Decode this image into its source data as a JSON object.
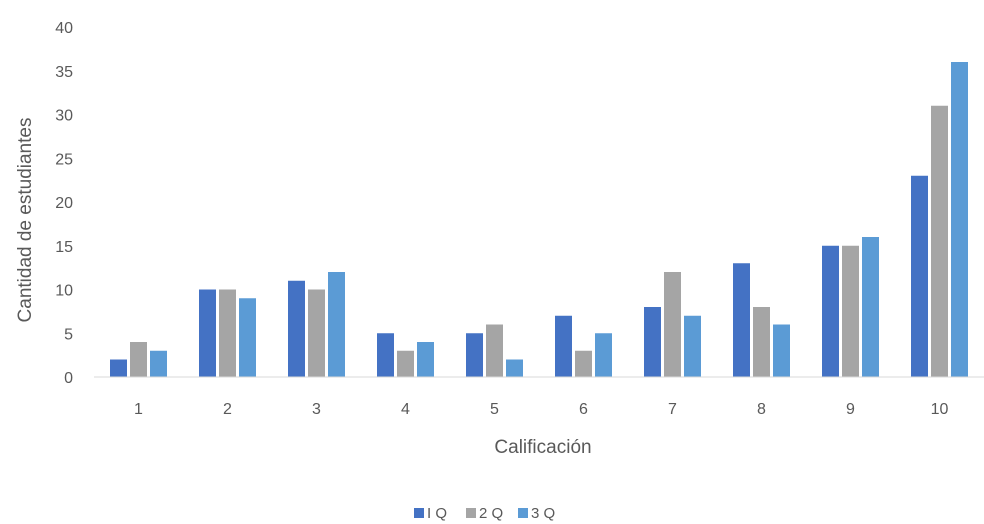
{
  "chart_data": {
    "type": "bar",
    "title": "",
    "xlabel": "Calificación",
    "ylabel": "Cantidad de estudiantes",
    "categories": [
      "1",
      "2",
      "3",
      "4",
      "5",
      "6",
      "7",
      "8",
      "9",
      "10"
    ],
    "yticks": [
      "0",
      "5",
      "10",
      "15",
      "20",
      "25",
      "30",
      "35",
      "40"
    ],
    "ylim": [
      0,
      40
    ],
    "grid": false,
    "legend_position": "bottom",
    "series": [
      {
        "name": "I Q",
        "color": "#4472C4",
        "values": [
          2,
          10,
          11,
          5,
          5,
          7,
          8,
          13,
          15,
          23
        ]
      },
      {
        "name": "2 Q",
        "color": "#A5A5A5",
        "values": [
          4,
          10,
          10,
          3,
          6,
          3,
          12,
          8,
          15,
          31
        ]
      },
      {
        "name": "3 Q",
        "color": "#5B9BD5",
        "values": [
          3,
          9,
          12,
          4,
          2,
          5,
          7,
          6,
          16,
          36
        ]
      }
    ]
  }
}
